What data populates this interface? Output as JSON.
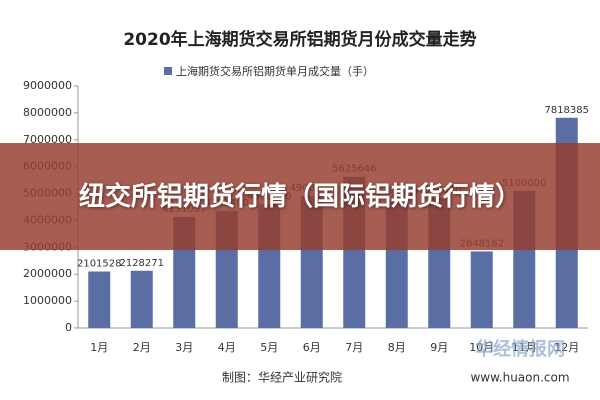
{
  "chart_data": {
    "type": "bar",
    "title": "2020年上海期货交易所铝期货月份成交量走势",
    "categories": [
      "1月",
      "2月",
      "3月",
      "4月",
      "5月",
      "6月",
      "7月",
      "8月",
      "9月",
      "10月",
      "11月",
      "12月"
    ],
    "series": [
      {
        "name": "上海期货交易所铝期货单月成交量（手）",
        "color": "#5a6ea3",
        "values": [
          2101528,
          2128271,
          4131097,
          4351400,
          4600000,
          4900000,
          5625646,
          4684387,
          4830000,
          2848162,
          5100000,
          7818385
        ]
      }
    ],
    "ylim": [
      0,
      9000000
    ],
    "yticks": [
      0,
      1000000,
      2000000,
      3000000,
      4000000,
      5000000,
      6000000,
      7000000,
      8000000,
      9000000
    ],
    "source": "制图：华经产业研究院",
    "website": "www.huaon.com"
  },
  "banner": {
    "text": "纽交所铝期货行情（国际铝期货行情）"
  },
  "watermark": {
    "text": "华经情报网"
  }
}
